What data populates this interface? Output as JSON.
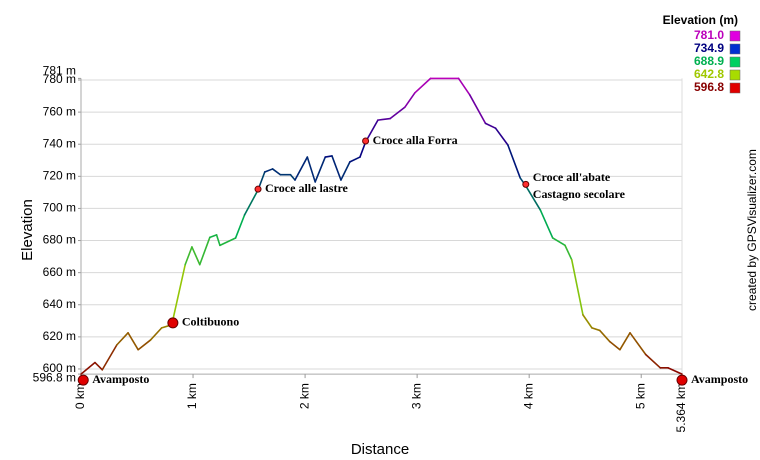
{
  "chart_data": {
    "type": "line",
    "x_label": "Distance",
    "y_label": "Elevation",
    "credit": "created by GPSVisualizer.com",
    "xlim": [
      0,
      5.364
    ],
    "ylim": [
      596.8,
      781
    ],
    "xticks": [
      {
        "value": 0,
        "label": "0 km"
      },
      {
        "value": 1,
        "label": "1 km"
      },
      {
        "value": 2,
        "label": "2 km"
      },
      {
        "value": 3,
        "label": "3 km"
      },
      {
        "value": 4,
        "label": "4 km"
      },
      {
        "value": 5,
        "label": "5 km"
      },
      {
        "value": 5.364,
        "label": "5.364 km"
      }
    ],
    "yticks": [
      {
        "value": 596.8,
        "label": "596.8 m"
      },
      {
        "value": 600,
        "label": "600 m"
      },
      {
        "value": 620,
        "label": "620 m"
      },
      {
        "value": 640,
        "label": "640 m"
      },
      {
        "value": 660,
        "label": "660 m"
      },
      {
        "value": 680,
        "label": "680 m"
      },
      {
        "value": 700,
        "label": "700 m"
      },
      {
        "value": 720,
        "label": "720 m"
      },
      {
        "value": 740,
        "label": "740 m"
      },
      {
        "value": 760,
        "label": "760 m"
      },
      {
        "value": 780,
        "label": "780 m"
      },
      {
        "value": 781,
        "label": "781 m"
      }
    ],
    "grid": true,
    "x": [
      0,
      0.125,
      0.19,
      0.32,
      0.42,
      0.51,
      0.62,
      0.72,
      0.81,
      0.93,
      0.99,
      1.06,
      1.15,
      1.21,
      1.24,
      1.38,
      1.46,
      1.58,
      1.64,
      1.71,
      1.78,
      1.87,
      1.91,
      2.02,
      2.09,
      2.18,
      2.24,
      2.32,
      2.4,
      2.49,
      2.54,
      2.65,
      2.76,
      2.89,
      2.98,
      3.12,
      3.37,
      3.47,
      3.61,
      3.7,
      3.81,
      3.92,
      3.97,
      4.1,
      4.21,
      4.32,
      4.38,
      4.48,
      4.56,
      4.63,
      4.72,
      4.81,
      4.9,
      5.04,
      5.17,
      5.24,
      5.364
    ],
    "values": [
      596.8,
      604,
      599.5,
      615,
      622.5,
      612,
      618,
      625.6,
      627.5,
      665,
      676,
      665,
      682,
      683.5,
      677,
      681.6,
      696,
      711.5,
      722.7,
      724.6,
      721,
      721,
      717.7,
      732,
      716.5,
      732,
      732.7,
      717.7,
      729,
      732,
      741.4,
      755,
      756,
      763,
      772,
      781,
      781,
      770.7,
      753,
      750,
      739.5,
      719,
      714,
      699,
      681.6,
      677,
      668,
      633.7,
      625.6,
      624,
      617,
      612,
      622.5,
      609,
      600.7,
      600.7,
      596.8
    ],
    "color_scale": {
      "title": "Elevation (m)",
      "stops": [
        {
          "value": 781,
          "label": "781.0",
          "color": "#bb00bb",
          "swatch": "#e000e0"
        },
        {
          "value": 734.9,
          "label": "734.9",
          "color": "#000080",
          "swatch": "#0030d0"
        },
        {
          "value": 688.9,
          "label": "688.9",
          "color": "#00b050",
          "swatch": "#00d060"
        },
        {
          "value": 642.8,
          "label": "642.8",
          "color": "#a0c800",
          "swatch": "#a8dc00"
        },
        {
          "value": 596.8,
          "label": "596.8",
          "color": "#880000",
          "swatch": "#e00000"
        }
      ]
    },
    "waypoints": [
      {
        "name": [
          "Avamposto"
        ],
        "x": 0.02,
        "y": 596.8,
        "size": "large"
      },
      {
        "name": [
          "Coltibuono"
        ],
        "x": 0.82,
        "y": 628.7,
        "size": "large"
      },
      {
        "name": [
          "Croce alle lastre"
        ],
        "x": 1.58,
        "y": 712,
        "size": "small"
      },
      {
        "name": [
          "Croce alla Forra"
        ],
        "x": 2.54,
        "y": 742,
        "size": "small"
      },
      {
        "name": [
          "Croce all'abate",
          "Castagno secolare"
        ],
        "x": 3.97,
        "y": 715,
        "size": "small"
      },
      {
        "name": [
          "Avamposto"
        ],
        "x": 5.364,
        "y": 596.8,
        "size": "large"
      }
    ]
  }
}
